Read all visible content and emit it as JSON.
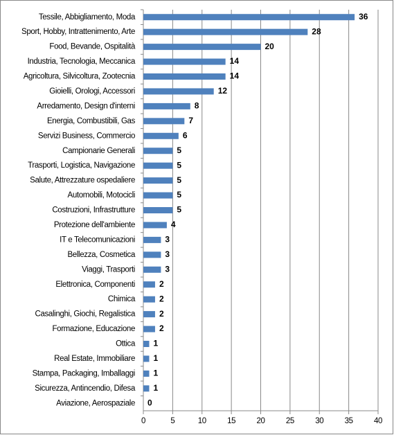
{
  "chart_data": {
    "type": "bar",
    "orientation": "horizontal",
    "categories": [
      "Tessile, Abbigliamento, Moda",
      "Sport, Hobby, Intrattenimento, Arte",
      "Food, Bevande, Ospitalità",
      "Industria, Tecnologia, Meccanica",
      "Agricoltura, Silvicoltura, Zootecnia",
      "Gioielli, Orologi, Accessori",
      "Arredamento, Design d'interni",
      "Energia, Combustibili, Gas",
      "Servizi Business, Commercio",
      "Campionarie Generali",
      "Trasporti, Logistica, Navigazione",
      "Salute, Attrezzature ospedaliere",
      "Automobili, Motocicli",
      "Costruzioni, Infrastrutture",
      "Protezione dell'ambiente",
      "IT e Telecomunicazioni",
      "Bellezza, Cosmetica",
      "Viaggi, Trasporti",
      "Elettronica, Componenti",
      "Chimica",
      "Casalinghi, Giochi, Regalistica",
      "Formazione, Educazione",
      "Ottica",
      "Real Estate, Immobiliare",
      "Stampa, Packaging, Imballaggi",
      "Sicurezza, Antincendio, Difesa",
      "Aviazione, Aerospaziale"
    ],
    "values": [
      36,
      28,
      20,
      14,
      14,
      12,
      8,
      7,
      6,
      5,
      5,
      5,
      5,
      5,
      4,
      3,
      3,
      3,
      2,
      2,
      2,
      2,
      1,
      1,
      1,
      1,
      0
    ],
    "color": "#4f81bd",
    "xlim": [
      0,
      40
    ],
    "xticks": [
      0,
      5,
      10,
      15,
      20,
      25,
      30,
      35,
      40
    ],
    "grid": true
  }
}
